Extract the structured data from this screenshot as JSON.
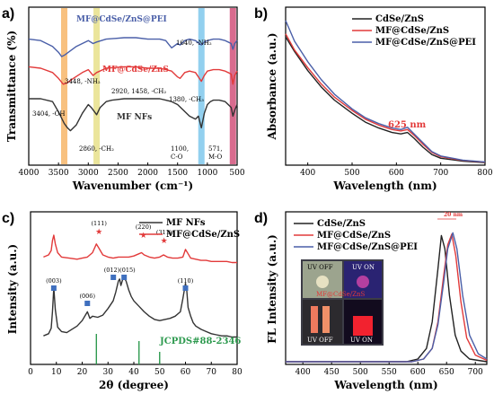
{
  "chart_data": [
    {
      "panel": "a)",
      "type": "line",
      "xlabel": "Wavenumber (cm⁻¹)",
      "ylabel": "Transmittance (%)",
      "xlim": [
        4000,
        500
      ],
      "xticks": [
        4000,
        3500,
        3000,
        2500,
        2000,
        1500,
        1000,
        500
      ],
      "series": [
        {
          "name": "MF@CdSe/ZnS@PEI",
          "color": "#4a5fa8",
          "x": [
            4000,
            3800,
            3600,
            3500,
            3448,
            3400,
            3300,
            3200,
            3000,
            2920,
            2860,
            2700,
            2400,
            2200,
            2000,
            1800,
            1700,
            1640,
            1600,
            1500,
            1458,
            1380,
            1300,
            1200,
            1100,
            1050,
            1000,
            900,
            800,
            700,
            600,
            571,
            540,
            500
          ],
          "y": [
            83,
            82,
            78,
            74,
            71,
            72,
            75,
            78,
            82,
            80,
            81,
            83,
            84,
            84,
            83,
            83,
            82,
            79,
            77,
            80,
            79,
            82,
            83,
            82,
            79,
            81,
            82,
            83,
            83,
            82,
            80,
            76,
            80,
            82
          ]
        },
        {
          "name": "MF@CdSe/ZnS",
          "color": "#e23a3a",
          "x": [
            4000,
            3800,
            3600,
            3500,
            3420,
            3350,
            3250,
            3100,
            3000,
            2920,
            2860,
            2700,
            2400,
            2200,
            2000,
            1800,
            1700,
            1600,
            1500,
            1458,
            1380,
            1300,
            1200,
            1100,
            1050,
            1000,
            900,
            800,
            700,
            600,
            571,
            540,
            500
          ],
          "y": [
            64,
            63,
            60,
            56,
            52,
            53,
            56,
            60,
            62,
            58,
            60,
            63,
            64,
            64,
            63,
            63,
            62,
            61,
            57,
            56,
            60,
            61,
            60,
            54,
            58,
            61,
            62,
            62,
            61,
            59,
            52,
            58,
            61
          ]
        },
        {
          "name": "MF NFs",
          "color": "#333333",
          "x": [
            4000,
            3800,
            3600,
            3500,
            3404,
            3350,
            3300,
            3200,
            3100,
            3000,
            2950,
            2860,
            2800,
            2700,
            2600,
            2400,
            2200,
            2000,
            1800,
            1700,
            1600,
            1500,
            1400,
            1300,
            1200,
            1150,
            1100,
            1050,
            1000,
            950,
            900,
            800,
            700,
            600,
            571,
            540,
            500
          ],
          "y": [
            42,
            42,
            40,
            33,
            25,
            22,
            20,
            24,
            32,
            38,
            36,
            31,
            36,
            40,
            41,
            42,
            42,
            42,
            42,
            41,
            40,
            38,
            34,
            30,
            28,
            30,
            22,
            32,
            38,
            40,
            41,
            41,
            40,
            36,
            30,
            34,
            38
          ]
        }
      ],
      "bands": [
        {
          "x": 3404,
          "color": "#f7b66a"
        },
        {
          "x": 2860,
          "color": "#e8e08a"
        },
        {
          "x": 1100,
          "color": "#7fc8ec"
        },
        {
          "x": 571,
          "color": "#d1517a"
        }
      ],
      "series_labels": [
        "MF@CdSe/ZnS@PEI",
        "MF@CdSe/ZnS",
        "MF NFs"
      ],
      "annotations": [
        "1640, -NH₂",
        "3448, -NH₂",
        "2920, 1458, -CH₂",
        "1380, -CH₃",
        "3404, -OH",
        "2860, -CH₂",
        "1100,",
        "C-O",
        "571,",
        "M-O"
      ]
    },
    {
      "panel": "b)",
      "type": "line",
      "xlabel": "Wavelength (nm)",
      "ylabel": "Absorbance (a.u.)",
      "xlim": [
        350,
        800
      ],
      "xticks": [
        400,
        500,
        600,
        700,
        800
      ],
      "series": [
        {
          "name": "CdSe/ZnS",
          "color": "#222222",
          "x": [
            350,
            370,
            400,
            430,
            460,
            500,
            530,
            560,
            590,
            610,
            625,
            640,
            660,
            680,
            700,
            750,
            800
          ],
          "y": [
            0.86,
            0.76,
            0.63,
            0.52,
            0.43,
            0.34,
            0.28,
            0.24,
            0.21,
            0.2,
            0.21,
            0.17,
            0.11,
            0.06,
            0.035,
            0.015,
            0.005
          ]
        },
        {
          "name": "MF@CdSe/ZnS",
          "color": "#e23a3a",
          "x": [
            350,
            370,
            400,
            430,
            460,
            500,
            530,
            560,
            590,
            610,
            625,
            640,
            660,
            680,
            700,
            750,
            800
          ],
          "y": [
            0.88,
            0.77,
            0.65,
            0.54,
            0.45,
            0.36,
            0.3,
            0.26,
            0.23,
            0.22,
            0.23,
            0.19,
            0.13,
            0.075,
            0.045,
            0.02,
            0.008
          ]
        },
        {
          "name": "MF@CdSe/ZnS@PEI",
          "color": "#4a5fa8",
          "x": [
            350,
            370,
            400,
            430,
            460,
            500,
            530,
            560,
            590,
            610,
            625,
            640,
            660,
            680,
            700,
            750,
            800
          ],
          "y": [
            0.97,
            0.83,
            0.69,
            0.57,
            0.47,
            0.37,
            0.31,
            0.27,
            0.24,
            0.23,
            0.245,
            0.2,
            0.14,
            0.08,
            0.05,
            0.022,
            0.01
          ]
        }
      ],
      "annotation": "625 nm"
    },
    {
      "panel": "c)",
      "type": "line",
      "xlabel": "2θ (degree)",
      "ylabel": "Intensity (a.u.)",
      "xlim": [
        0,
        80
      ],
      "xticks": [
        0,
        10,
        20,
        30,
        40,
        50,
        60,
        70,
        80
      ],
      "series": [
        {
          "name": "MF NFs",
          "color": "#333333",
          "x": [
            5,
            7,
            8,
            8.5,
            9,
            9.6,
            10.5,
            12,
            14,
            16,
            18,
            20,
            22,
            23,
            24,
            26,
            28,
            30,
            32,
            33,
            34,
            34.5,
            35,
            36,
            37,
            38,
            39,
            40,
            42,
            44,
            46,
            48,
            50,
            52,
            54,
            56,
            58,
            59,
            60,
            60.5,
            61,
            62,
            63,
            64,
            66,
            68,
            70,
            72,
            74,
            76,
            78,
            80
          ],
          "y": [
            0.08,
            0.1,
            0.15,
            0.3,
            0.52,
            0.32,
            0.16,
            0.12,
            0.11,
            0.14,
            0.17,
            0.22,
            0.3,
            0.24,
            0.26,
            0.25,
            0.27,
            0.33,
            0.4,
            0.48,
            0.58,
            0.6,
            0.54,
            0.62,
            0.58,
            0.5,
            0.44,
            0.4,
            0.35,
            0.3,
            0.26,
            0.23,
            0.22,
            0.23,
            0.24,
            0.26,
            0.3,
            0.42,
            0.56,
            0.5,
            0.34,
            0.26,
            0.2,
            0.17,
            0.14,
            0.12,
            0.1,
            0.09,
            0.08,
            0.08,
            0.07,
            0.07
          ]
        },
        {
          "name": "MF@CdSe/ZnS",
          "color": "#e23a3a",
          "x": [
            5,
            7,
            8,
            8.5,
            9,
            9.6,
            10.5,
            12,
            15,
            18,
            20,
            22,
            24,
            25.5,
            26.5,
            28,
            30,
            32,
            34,
            36,
            38,
            40,
            42,
            43,
            44,
            46,
            48,
            50,
            51.5,
            53,
            55,
            57,
            59,
            60,
            61,
            62,
            64,
            66,
            68,
            70,
            72,
            74,
            76,
            78,
            80
          ],
          "y": [
            0.8,
            0.82,
            0.86,
            0.95,
            1.0,
            0.92,
            0.84,
            0.8,
            0.79,
            0.78,
            0.79,
            0.8,
            0.84,
            0.92,
            0.88,
            0.82,
            0.8,
            0.79,
            0.8,
            0.8,
            0.8,
            0.81,
            0.83,
            0.84,
            0.82,
            0.8,
            0.79,
            0.8,
            0.82,
            0.8,
            0.79,
            0.79,
            0.8,
            0.87,
            0.83,
            0.79,
            0.78,
            0.77,
            0.77,
            0.76,
            0.76,
            0.76,
            0.76,
            0.75,
            0.75
          ]
        }
      ],
      "peak_labels": [
        {
          "label": "(111)",
          "x": 26.5
        },
        {
          "label": "(220)",
          "x": 43.7
        },
        {
          "label": "(311)",
          "x": 51.7
        },
        {
          "label": "(003)",
          "x": 9
        },
        {
          "label": "(006)",
          "x": 22
        },
        {
          "label": "(012)(015)",
          "x": 34.5
        },
        {
          "label": "(110)",
          "x": 60
        }
      ],
      "reference": {
        "name": "JCPDS#88-2346",
        "x": [
          25.5,
          42,
          50
        ]
      }
    },
    {
      "panel": "d)",
      "type": "line",
      "xlabel": "Wavelength (nm)",
      "ylabel": "FL Intensity (a.u.)",
      "xlim": [
        370,
        720
      ],
      "xticks": [
        400,
        450,
        500,
        550,
        600,
        650,
        700
      ],
      "series": [
        {
          "name": "CdSe/ZnS",
          "color": "#222222",
          "x": [
            370,
            580,
            600,
            615,
            625,
            635,
            641,
            647,
            655,
            665,
            675,
            690,
            705,
            720
          ],
          "y": [
            0,
            0,
            0.02,
            0.1,
            0.3,
            0.7,
            0.95,
            0.85,
            0.5,
            0.2,
            0.08,
            0.02,
            0.01,
            0
          ]
        },
        {
          "name": "MF@CdSe/ZnS",
          "color": "#e23a3a",
          "x": [
            370,
            590,
            610,
            625,
            635,
            645,
            652,
            659,
            666,
            675,
            685,
            700,
            715,
            720
          ],
          "y": [
            0,
            0,
            0.02,
            0.1,
            0.3,
            0.65,
            0.88,
            0.96,
            0.8,
            0.45,
            0.18,
            0.05,
            0.02,
            0.01
          ]
        },
        {
          "name": "MF@CdSe/ZnS@PEI",
          "color": "#4a5fa8",
          "x": [
            370,
            590,
            610,
            625,
            635,
            645,
            652,
            661,
            668,
            678,
            690,
            705,
            720
          ],
          "y": [
            0,
            0,
            0.02,
            0.1,
            0.28,
            0.6,
            0.85,
            0.97,
            0.85,
            0.5,
            0.2,
            0.06,
            0.02
          ]
        }
      ],
      "annotation": "20 nm",
      "inset_labels": [
        "UV OFF",
        "UV ON",
        "MF@CdSe/ZnS",
        "UV OFF",
        "UV ON"
      ]
    }
  ]
}
